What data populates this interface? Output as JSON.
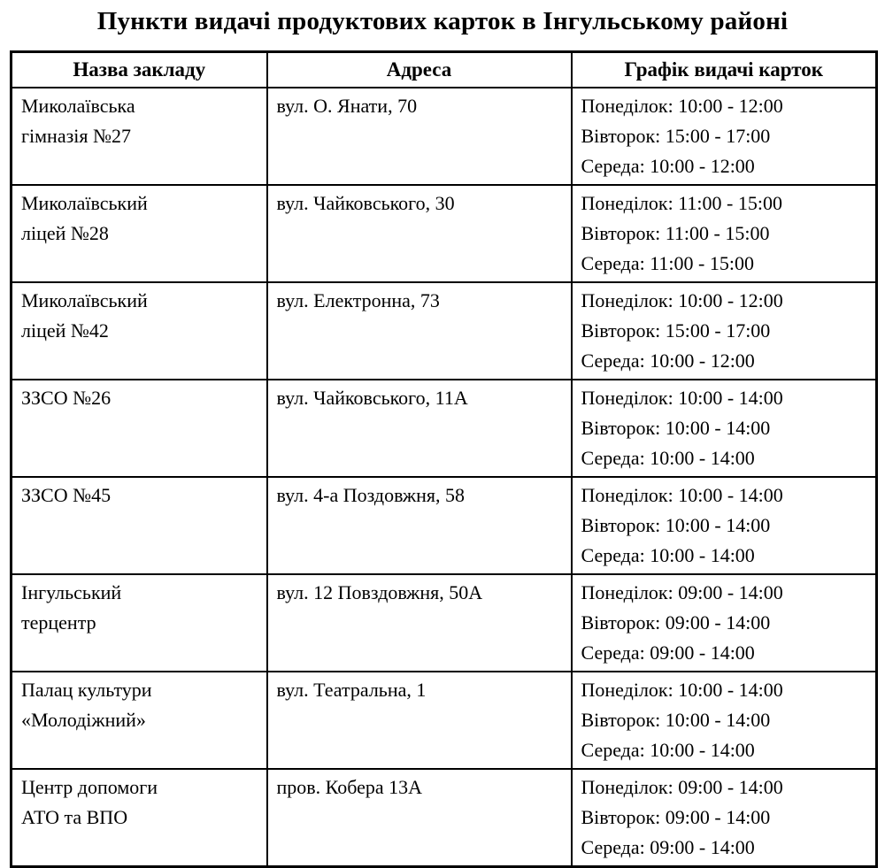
{
  "page": {
    "title": "Пункти видачі продуктових карток в Інгульському районі"
  },
  "table": {
    "headers": {
      "name": "Назва закладу",
      "address": "Адреса",
      "schedule": "Графік видачі карток"
    },
    "rows": [
      {
        "name_lines": [
          "Миколаївська",
          "гімназія №27"
        ],
        "address": "вул. О. Янати, 70",
        "schedule": [
          "Понеділок: 10:00 - 12:00",
          "Вівторок: 15:00 - 17:00",
          "Середа: 10:00 - 12:00"
        ]
      },
      {
        "name_lines": [
          "Миколаївський",
          "ліцей №28"
        ],
        "address": "вул. Чайковського, 30",
        "schedule": [
          "Понеділок: 11:00 - 15:00",
          "Вівторок: 11:00 - 15:00",
          "Середа: 11:00 - 15:00"
        ]
      },
      {
        "name_lines": [
          "Миколаївський",
          "ліцей №42"
        ],
        "address": "вул. Електронна, 73",
        "schedule": [
          "Понеділок: 10:00 - 12:00",
          "Вівторок: 15:00 - 17:00",
          "Середа: 10:00 - 12:00"
        ]
      },
      {
        "name_lines": [
          "ЗЗСО №26"
        ],
        "address": "вул. Чайковського, 11А",
        "schedule": [
          "Понеділок: 10:00 - 14:00",
          "Вівторок: 10:00 - 14:00",
          "Середа: 10:00 - 14:00"
        ]
      },
      {
        "name_lines": [
          "ЗЗСО №45"
        ],
        "address": "вул. 4-а Поздовжня, 58",
        "schedule": [
          "Понеділок: 10:00 - 14:00",
          "Вівторок: 10:00 - 14:00",
          "Середа: 10:00 - 14:00"
        ]
      },
      {
        "name_lines": [
          "Інгульський",
          "терцентр"
        ],
        "address": "вул. 12 Повздовжня, 50А",
        "schedule": [
          "Понеділок: 09:00 - 14:00",
          "Вівторок: 09:00 - 14:00",
          "Середа: 09:00 - 14:00"
        ]
      },
      {
        "name_lines": [
          "Палац культури",
          "«Молодіжний»"
        ],
        "address": "вул. Театральна, 1",
        "schedule": [
          "Понеділок: 10:00 - 14:00",
          "Вівторок: 10:00 - 14:00",
          "Середа: 10:00 - 14:00"
        ]
      },
      {
        "name_lines": [
          "Центр допомоги",
          "АТО та ВПО"
        ],
        "address": "пров. Кобера 13А",
        "schedule": [
          "Понеділок: 09:00 - 14:00",
          "Вівторок: 09:00 - 14:00",
          "Середа: 09:00 - 14:00"
        ]
      }
    ]
  }
}
